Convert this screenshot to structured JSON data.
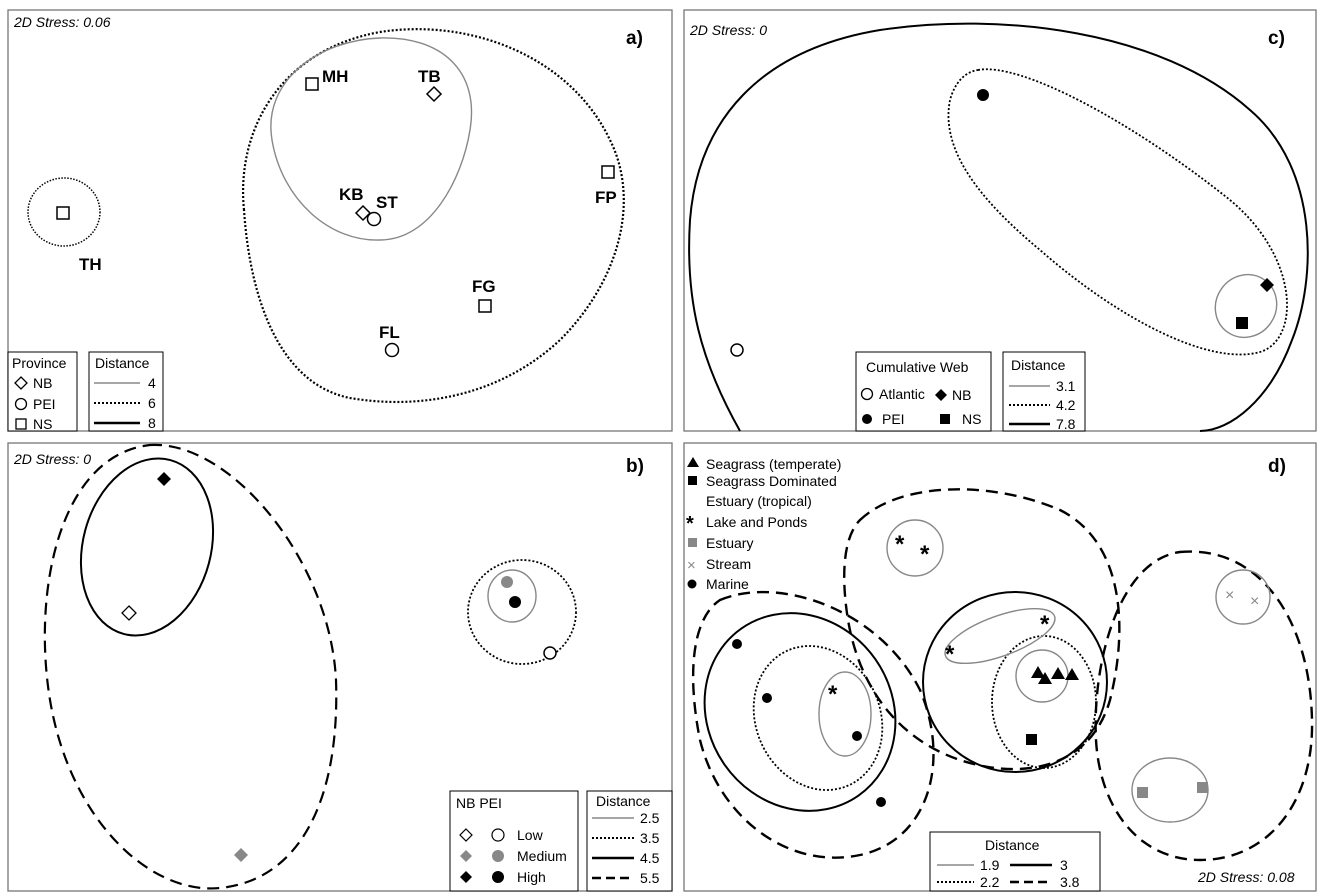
{
  "chart_data": [
    {
      "type": "scatter",
      "panel": "a)",
      "stress": "2D Stress: 0.06",
      "legend_marker_title": "Province",
      "legend_line_title": "Distance",
      "groups": [
        {
          "name": "NB",
          "marker": "diamond-open"
        },
        {
          "name": "PEI",
          "marker": "circle-open"
        },
        {
          "name": "NS",
          "marker": "square-open"
        }
      ],
      "distances": [
        {
          "label": "4",
          "style": "thin"
        },
        {
          "label": "6",
          "style": "dotted"
        },
        {
          "label": "8",
          "style": "thick"
        }
      ],
      "points": [
        {
          "label": "MH",
          "group": "NS",
          "x": -0.2,
          "y": 0.85
        },
        {
          "label": "TB",
          "group": "NB",
          "x": 0.1,
          "y": 0.78
        },
        {
          "label": "FP",
          "group": "NS",
          "x": 0.68,
          "y": 0.5
        },
        {
          "label": "KB",
          "group": "NB",
          "x": -0.05,
          "y": 0.28
        },
        {
          "label": "ST",
          "group": "PEI",
          "x": 0.0,
          "y": 0.26
        },
        {
          "label": "TH",
          "group": "NS",
          "x": -1.05,
          "y": 0.28
        },
        {
          "label": "FG",
          "group": "NS",
          "x": 0.28,
          "y": -0.18
        },
        {
          "label": "FL",
          "group": "PEI",
          "x": 0.04,
          "y": -0.42
        }
      ]
    },
    {
      "type": "scatter",
      "panel": "b)",
      "stress": "2D Stress: 0",
      "legend_marker_title": "NB PEI",
      "legend_line_title": "Distance",
      "groups": [
        {
          "name": "Low",
          "nb_marker": "diamond-open",
          "pei_marker": "circle-open"
        },
        {
          "name": "Medium",
          "nb_marker": "diamond-grey",
          "pei_marker": "circle-grey"
        },
        {
          "name": "High",
          "nb_marker": "diamond-black",
          "pei_marker": "circle-black"
        }
      ],
      "distances": [
        {
          "label": "2.5",
          "style": "thin"
        },
        {
          "label": "3.5",
          "style": "dotted"
        },
        {
          "label": "4.5",
          "style": "thick"
        },
        {
          "label": "5.5",
          "style": "dashed"
        }
      ],
      "points": [
        {
          "province": "NB",
          "level": "High",
          "x": -0.9,
          "y": 0.9
        },
        {
          "province": "NB",
          "level": "Low",
          "x": -0.95,
          "y": 0.3
        },
        {
          "province": "NB",
          "level": "Medium",
          "x": -0.6,
          "y": -0.75
        },
        {
          "province": "PEI",
          "level": "Medium",
          "x": 0.85,
          "y": 0.45
        },
        {
          "province": "PEI",
          "level": "High",
          "x": 0.86,
          "y": 0.35
        },
        {
          "province": "PEI",
          "level": "Low",
          "x": 0.95,
          "y": 0.15
        }
      ]
    },
    {
      "type": "scatter",
      "panel": "c)",
      "stress": "2D Stress: 0",
      "legend_marker_title": "Cumulative Web",
      "legend_line_title": "Distance",
      "groups": [
        {
          "name": "Atlantic",
          "marker": "circle-open"
        },
        {
          "name": "NB",
          "marker": "diamond-black"
        },
        {
          "name": "PEI",
          "marker": "circle-black"
        },
        {
          "name": "NS",
          "marker": "square-black"
        }
      ],
      "distances": [
        {
          "label": "3.1",
          "style": "thin"
        },
        {
          "label": "4.2",
          "style": "dotted"
        },
        {
          "label": "7.8",
          "style": "thick"
        }
      ],
      "points": [
        {
          "group": "PEI",
          "x": -0.1,
          "y": 0.85
        },
        {
          "group": "NB",
          "x": 0.9,
          "y": 0.2
        },
        {
          "group": "NS",
          "x": 0.8,
          "y": 0.05
        },
        {
          "group": "Atlantic",
          "x": -0.95,
          "y": -0.1
        }
      ]
    },
    {
      "type": "scatter",
      "panel": "d)",
      "stress": "2D Stress: 0.08",
      "legend_line_title": "Distance",
      "groups": [
        {
          "name": "Seagrass (temperate)",
          "marker": "triangle-black"
        },
        {
          "name": "Seagrass Dominated",
          "marker": "square-black"
        },
        {
          "name": "Estuary (tropical)",
          "marker": "none"
        },
        {
          "name": "Lake and Ponds",
          "marker": "asterisk"
        },
        {
          "name": "Estuary",
          "marker": "square-grey"
        },
        {
          "name": "Stream",
          "marker": "cross"
        },
        {
          "name": "Marine",
          "marker": "circle-black"
        }
      ],
      "distances": [
        {
          "label": "1.9",
          "style": "thin"
        },
        {
          "label": "2.2",
          "style": "dotted"
        },
        {
          "label": "3",
          "style": "thick"
        },
        {
          "label": "3.8",
          "style": "dashed"
        }
      ],
      "points": [
        {
          "group": "Lake and Ponds",
          "x": -0.35,
          "y": 0.8
        },
        {
          "group": "Lake and Ponds",
          "x": -0.3,
          "y": 0.75
        },
        {
          "group": "Stream",
          "x": 0.8,
          "y": 0.7
        },
        {
          "group": "Stream",
          "x": 0.85,
          "y": 0.68
        },
        {
          "group": "Lake and Ponds",
          "x": 0.1,
          "y": 0.45
        },
        {
          "group": "Lake and Ponds",
          "x": -0.25,
          "y": 0.35
        },
        {
          "group": "Seagrass (temperate)",
          "x": 0.08,
          "y": 0.28
        },
        {
          "group": "Seagrass (temperate)",
          "x": 0.12,
          "y": 0.28
        },
        {
          "group": "Seagrass (temperate)",
          "x": 0.15,
          "y": 0.28
        },
        {
          "group": "Seagrass (temperate)",
          "x": 0.1,
          "y": 0.26
        },
        {
          "group": "Marine",
          "x": -0.95,
          "y": 0.4
        },
        {
          "group": "Lake and Ponds",
          "x": -0.55,
          "y": 0.25
        },
        {
          "group": "Marine",
          "x": -0.85,
          "y": 0.2
        },
        {
          "group": "Marine",
          "x": -0.5,
          "y": 0.02
        },
        {
          "group": "Seagrass Dominated",
          "x": 0.05,
          "y": -0.05
        },
        {
          "group": "Marine",
          "x": -0.4,
          "y": -0.35
        },
        {
          "group": "Estuary",
          "x": 0.65,
          "y": -0.25
        },
        {
          "group": "Estuary",
          "x": 0.78,
          "y": -0.24
        }
      ]
    }
  ]
}
